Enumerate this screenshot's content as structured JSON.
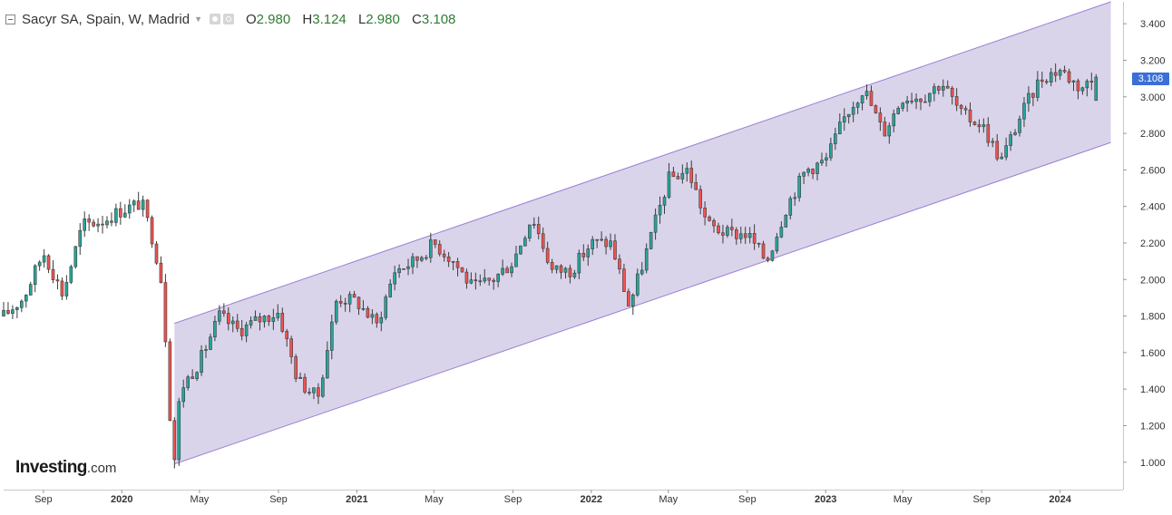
{
  "legend": {
    "title": "Sacyr SA, Spain, W, Madrid",
    "open_label": "O",
    "open": "2.980",
    "high_label": "H",
    "high": "3.124",
    "low_label": "L",
    "low": "2.980",
    "close_label": "C",
    "close": "3.108"
  },
  "logo": {
    "brand": "Investing",
    "suffix": ".com"
  },
  "last_price_label": "3.108",
  "colors": {
    "up": "#26a69a",
    "down": "#ef5350",
    "channel_fill": "#d8d2ea",
    "channel_line": "#9b7fd4",
    "price_tag": "#3a6fd8"
  },
  "chart_data": {
    "type": "candlestick",
    "interval": "weekly",
    "y_ticks": [
      "1.000",
      "1.200",
      "1.400",
      "1.600",
      "1.800",
      "2.000",
      "2.200",
      "2.400",
      "2.600",
      "2.800",
      "3.000",
      "3.200",
      "3.400"
    ],
    "ylim": [
      0.85,
      3.52
    ],
    "x_ticks": [
      {
        "label": "Sep",
        "date": "2019-09"
      },
      {
        "label": "2020",
        "date": "2020-01"
      },
      {
        "label": "May",
        "date": "2020-05"
      },
      {
        "label": "Sep",
        "date": "2020-09"
      },
      {
        "label": "2021",
        "date": "2021-01"
      },
      {
        "label": "May",
        "date": "2021-05"
      },
      {
        "label": "Sep",
        "date": "2021-09"
      },
      {
        "label": "2022",
        "date": "2022-01"
      },
      {
        "label": "May",
        "date": "2022-05"
      },
      {
        "label": "Sep",
        "date": "2022-09"
      },
      {
        "label": "2023",
        "date": "2023-01"
      },
      {
        "label": "May",
        "date": "2023-05"
      },
      {
        "label": "Sep",
        "date": "2023-09"
      },
      {
        "label": "2024",
        "date": "2024-01"
      }
    ],
    "anchors": [
      {
        "date": "2019-07",
        "close": 1.8
      },
      {
        "date": "2019-08",
        "close": 1.9
      },
      {
        "date": "2019-09",
        "close": 2.15
      },
      {
        "date": "2019-10",
        "close": 1.92
      },
      {
        "date": "2019-11",
        "close": 2.3
      },
      {
        "date": "2019-12",
        "close": 2.32
      },
      {
        "date": "2020-01",
        "close": 2.38
      },
      {
        "date": "2020-02",
        "close": 2.42
      },
      {
        "date": "2020-02-20",
        "close": 2.2
      },
      {
        "date": "2020-03-05",
        "close": 1.95
      },
      {
        "date": "2020-03-15",
        "close": 1.3
      },
      {
        "date": "2020-03-23",
        "close": 1.02
      },
      {
        "date": "2020-04",
        "close": 1.4
      },
      {
        "date": "2020-05",
        "close": 1.55
      },
      {
        "date": "2020-06",
        "close": 1.8
      },
      {
        "date": "2020-07",
        "close": 1.72
      },
      {
        "date": "2020-08",
        "close": 1.78
      },
      {
        "date": "2020-09",
        "close": 1.82
      },
      {
        "date": "2020-10",
        "close": 1.45
      },
      {
        "date": "2020-11",
        "close": 1.35
      },
      {
        "date": "2020-12",
        "close": 1.9
      },
      {
        "date": "2021-01",
        "close": 1.88
      },
      {
        "date": "2021-02",
        "close": 1.75
      },
      {
        "date": "2021-03",
        "close": 2.05
      },
      {
        "date": "2021-04",
        "close": 2.1
      },
      {
        "date": "2021-05",
        "close": 2.2
      },
      {
        "date": "2021-06",
        "close": 2.1
      },
      {
        "date": "2021-07",
        "close": 1.95
      },
      {
        "date": "2021-08",
        "close": 2.0
      },
      {
        "date": "2021-09",
        "close": 2.1
      },
      {
        "date": "2021-10",
        "close": 2.35
      },
      {
        "date": "2021-11",
        "close": 2.05
      },
      {
        "date": "2021-12",
        "close": 2.05
      },
      {
        "date": "2022-01",
        "close": 2.2
      },
      {
        "date": "2022-02",
        "close": 2.2
      },
      {
        "date": "2022-03",
        "close": 1.85
      },
      {
        "date": "2022-04",
        "close": 2.2
      },
      {
        "date": "2022-05",
        "close": 2.55
      },
      {
        "date": "2022-06",
        "close": 2.6
      },
      {
        "date": "2022-07",
        "close": 2.3
      },
      {
        "date": "2022-08",
        "close": 2.25
      },
      {
        "date": "2022-09",
        "close": 2.25
      },
      {
        "date": "2022-10",
        "close": 2.1
      },
      {
        "date": "2022-11",
        "close": 2.4
      },
      {
        "date": "2022-12",
        "close": 2.6
      },
      {
        "date": "2023-01",
        "close": 2.65
      },
      {
        "date": "2023-02",
        "close": 2.9
      },
      {
        "date": "2023-03",
        "close": 3.05
      },
      {
        "date": "2023-04",
        "close": 2.8
      },
      {
        "date": "2023-05",
        "close": 3.0
      },
      {
        "date": "2023-06",
        "close": 3.0
      },
      {
        "date": "2023-07",
        "close": 3.08
      },
      {
        "date": "2023-08",
        "close": 2.9
      },
      {
        "date": "2023-09",
        "close": 2.85
      },
      {
        "date": "2023-10",
        "close": 2.65
      },
      {
        "date": "2023-11",
        "close": 2.9
      },
      {
        "date": "2023-12",
        "close": 3.1
      },
      {
        "date": "2024-01",
        "close": 3.15
      },
      {
        "date": "2024-02",
        "close": 3.05
      },
      {
        "date": "2024-03",
        "close": 3.108
      }
    ],
    "channel": {
      "upper": [
        {
          "date": "2020-03-23",
          "value": 1.76
        },
        {
          "date": "2024-03-20",
          "value": 3.52
        }
      ],
      "lower": [
        {
          "date": "2020-03-23",
          "value": 0.99
        },
        {
          "date": "2024-03-20",
          "value": 2.75
        }
      ]
    },
    "last": {
      "open": 2.98,
      "high": 3.124,
      "low": 2.98,
      "close": 3.108
    }
  }
}
